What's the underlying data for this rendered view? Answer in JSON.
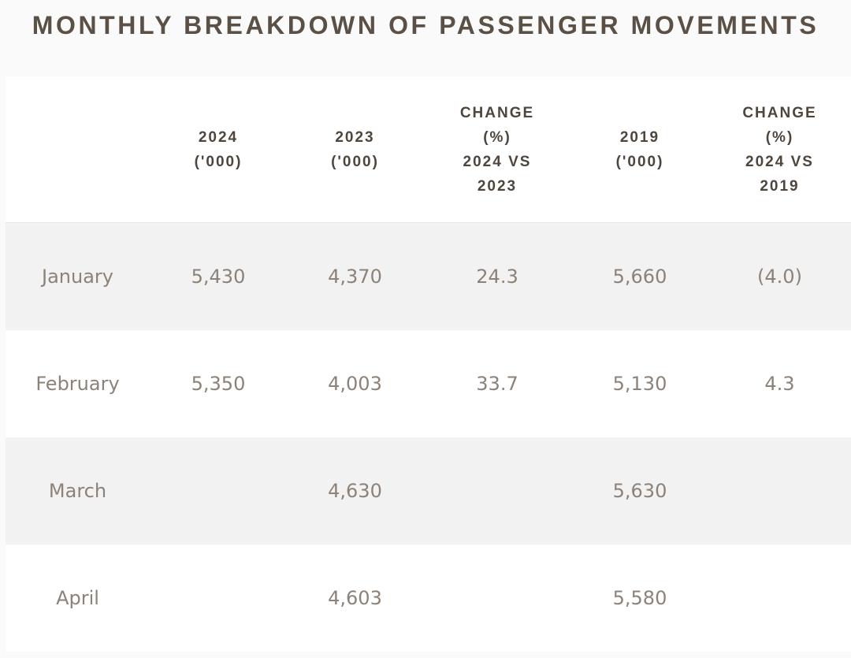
{
  "title": "MONTHLY BREAKDOWN OF PASSENGER MOVEMENTS",
  "table": {
    "headers": [
      "",
      "2024\n('000)",
      "2023\n('000)",
      "CHANGE\n(%)\n2024 VS\n2023",
      "2019\n('000)",
      "CHANGE\n(%)\n2024 VS\n2019"
    ],
    "rows": [
      [
        "January",
        "5,430",
        "4,370",
        "24.3",
        "5,660",
        "(4.0)"
      ],
      [
        "February",
        "5,350",
        "4,003",
        "33.7",
        "5,130",
        "4.3"
      ],
      [
        "March",
        "",
        "4,630",
        "",
        "5,630",
        ""
      ],
      [
        "April",
        "",
        "4,603",
        "",
        "5,580",
        ""
      ]
    ]
  },
  "colors": {
    "title": "#5a5045",
    "header_text": "#4e463d",
    "cell_text": "#8c8278",
    "row_shade": "#f2f2f2",
    "row_plain": "#ffffff"
  }
}
